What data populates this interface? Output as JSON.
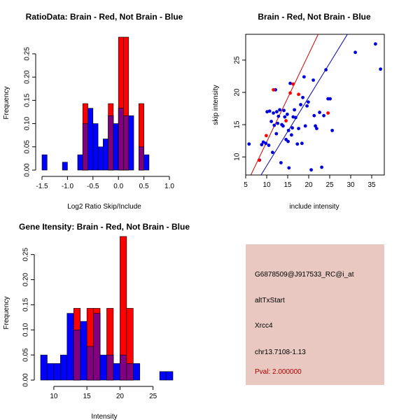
{
  "colors": {
    "red": "#ff0000",
    "blue": "#0000ff",
    "overlap": "#800080",
    "brain_point": "#ff0000",
    "nonbrain_point": "#0000dd",
    "brain_line": "#cc0000",
    "nonbrain_line": "#0000aa",
    "panel_bg": "#e8c8c0",
    "pval_text": "#b00000"
  },
  "chart_data": [
    {
      "type": "bar",
      "title": "RatioData: Brain - Red, Not Brain - Blue",
      "xlabel": "Log2 Ratio Skip/Include",
      "ylabel": "Frequency",
      "xlim": [
        -1.5,
        1.0
      ],
      "ylim": [
        0,
        0.28
      ],
      "xticks": [
        -1.5,
        -1.0,
        -0.5,
        0.0,
        0.5,
        1.0
      ],
      "xtick_labels": [
        "-1.5",
        "-1.0",
        "-0.5",
        "0.0",
        "0.5",
        "1.0"
      ],
      "yticks": [
        0.0,
        0.05,
        0.1,
        0.15,
        0.2,
        0.25
      ],
      "ytick_labels": [
        "0.00",
        "0.05",
        "0.10",
        "0.15",
        "0.20",
        "0.25"
      ],
      "bin_start": -1.5,
      "bin_width": 0.1,
      "series": [
        {
          "name": "Not Brain",
          "color": "blue",
          "values": [
            0.033,
            0,
            0,
            0,
            0.017,
            0,
            0,
            0.033,
            0.1,
            0.133,
            0.1,
            0.05,
            0.067,
            0.117,
            0.1,
            0.133,
            0.117,
            0.117,
            0,
            0.05,
            0.033
          ]
        },
        {
          "name": "Brain",
          "color": "red",
          "values": [
            0,
            0,
            0,
            0,
            0,
            0,
            0,
            0,
            0.143,
            0,
            0,
            0,
            0,
            0.143,
            0,
            0.286,
            0.286,
            0,
            0,
            0.143,
            0
          ]
        }
      ]
    },
    {
      "type": "scatter",
      "title": "Brain - Red, Not Brain - Blue",
      "xlabel": "include intensity",
      "ylabel": "skip intensity",
      "xlim": [
        5,
        38
      ],
      "ylim": [
        7.2,
        29
      ],
      "xticks": [
        5,
        10,
        15,
        20,
        25,
        30,
        35
      ],
      "xtick_labels": [
        "5",
        "10",
        "15",
        "20",
        "25",
        "30",
        "35"
      ],
      "yticks": [
        10,
        15,
        20,
        25
      ],
      "ytick_labels": [
        "10",
        "15",
        "20",
        "25"
      ],
      "series": [
        {
          "name": "Not Brain",
          "color": "nonbrain_point",
          "x": [
            5.8,
            8.3,
            8.8,
            9.2,
            9.8,
            10.1,
            10.5,
            10.7,
            11.1,
            11.4,
            11.6,
            11.8,
            12.1,
            12.3,
            12.4,
            12.6,
            12.8,
            13.1,
            13.4,
            13.6,
            13.9,
            14.1,
            14.3,
            14.6,
            14.9,
            15.1,
            15.2,
            15.3,
            15.6,
            15.9,
            16.1,
            16.3,
            16.6,
            16.9,
            17.3,
            17.6,
            18.1,
            18.4,
            18.6,
            18.9,
            19.2,
            19.6,
            19.9,
            20.6,
            21.1,
            21.3,
            21.6,
            21.9,
            22.6,
            23.1,
            23.6,
            24.1,
            24.6,
            25.1,
            25.6,
            31.1,
            35.9,
            37.1
          ],
          "y": [
            12.0,
            9.5,
            11.9,
            12.3,
            12.1,
            17.0,
            11.8,
            17.1,
            15.5,
            10.7,
            16.8,
            14.9,
            20.4,
            13.6,
            17.0,
            15.2,
            16.3,
            17.3,
            9.1,
            15.0,
            14.8,
            17.2,
            16.2,
            12.7,
            16.6,
            12.4,
            14.1,
            8.3,
            21.4,
            13.4,
            14.5,
            16.2,
            17.3,
            16.1,
            12.0,
            14.4,
            18.1,
            12.1,
            19.2,
            22.4,
            14.8,
            17.9,
            18.5,
            8.0,
            21.9,
            16.4,
            14.8,
            14.4,
            16.9,
            8.4,
            16.4,
            23.5,
            19.0,
            19.0,
            14.1,
            26.2,
            27.5,
            23.6
          ]
        },
        {
          "name": "Brain",
          "color": "brain_point",
          "x": [
            8.2,
            9.9,
            11.6,
            14.6,
            15.6,
            16.3,
            17.6,
            24.6
          ],
          "y": [
            9.5,
            13.3,
            20.4,
            15.6,
            19.9,
            21.3,
            19.7,
            16.8
          ]
        }
      ],
      "fit_lines": [
        {
          "name": "Brain fit",
          "color": "brain_line",
          "slope": 1.36,
          "intercept": -1.27
        },
        {
          "name": "Not Brain fit",
          "color": "nonbrain_line",
          "slope": 1.06,
          "intercept": -1.97
        }
      ]
    },
    {
      "type": "bar",
      "title": "Gene Itensity: Brain - Red, Not Brain - Blue",
      "xlabel": "Intensity",
      "ylabel": "Frequency",
      "xlim": [
        8,
        28
      ],
      "ylim": [
        0,
        0.29
      ],
      "xticks": [
        10,
        15,
        20,
        25
      ],
      "xtick_labels": [
        "10",
        "15",
        "20",
        "25"
      ],
      "yticks": [
        0.0,
        0.05,
        0.1,
        0.15,
        0.2,
        0.25
      ],
      "ytick_labels": [
        "0.00",
        "0.05",
        "0.10",
        "0.15",
        "0.20",
        "0.25"
      ],
      "bin_start": 8,
      "bin_width": 1,
      "series": [
        {
          "name": "Not Brain",
          "color": "blue",
          "values": [
            0.05,
            0.033,
            0.033,
            0.05,
            0.133,
            0.1,
            0.117,
            0.067,
            0.133,
            0.05,
            0.05,
            0.033,
            0.05,
            0.033,
            0.033,
            0,
            0,
            0,
            0.017,
            0.017
          ]
        },
        {
          "name": "Brain",
          "color": "red",
          "values": [
            0,
            0,
            0,
            0,
            0,
            0.143,
            0,
            0.143,
            0.143,
            0,
            0.143,
            0,
            0.286,
            0.143,
            0,
            0,
            0,
            0,
            0,
            0
          ]
        }
      ]
    }
  ],
  "info": {
    "gene_id": "G6878509@J917533_RC@i_at",
    "event_type": "altTxStart",
    "gene_name": "Xrcc4",
    "location": "chr13.7108-1.13",
    "pval": "Pval: 2.000000"
  }
}
